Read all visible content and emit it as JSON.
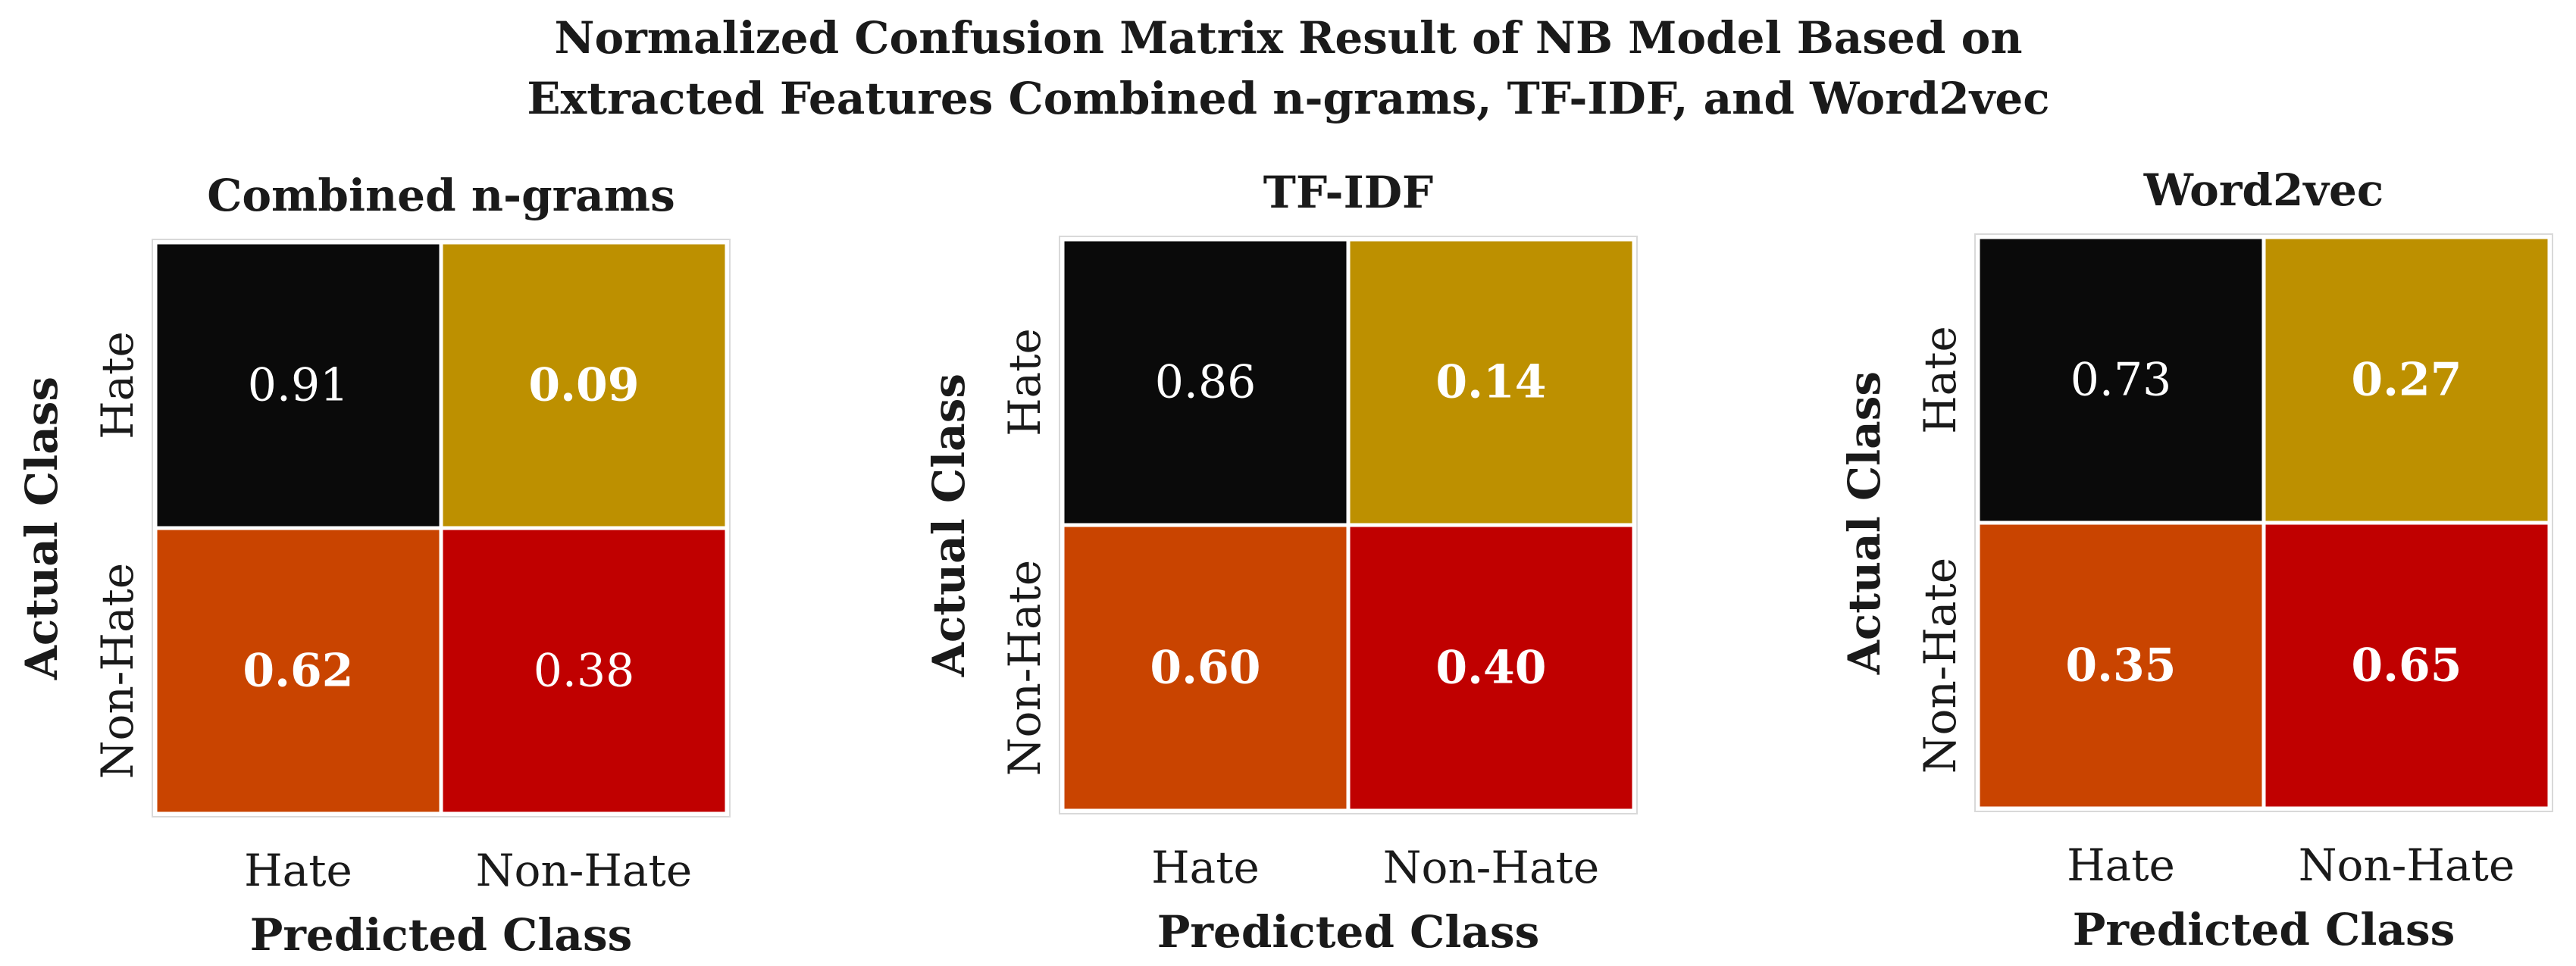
{
  "title_lines": [
    "Normalized Confusion Matrix Result of NB Model Based on",
    "Extracted Features Combined n-grams, TF-IDF, and Word2vec"
  ],
  "chart_data": [
    {
      "type": "heatmap",
      "title": "Combined n-grams",
      "xlabel": "Predicted Class",
      "ylabel": "Actual Class",
      "x_ticks": [
        "Hate",
        "Non-Hate"
      ],
      "y_ticks": [
        "Hate",
        "Non-Hate"
      ],
      "values": [
        [
          0.91,
          0.09
        ],
        [
          0.62,
          0.38
        ]
      ],
      "value_labels": [
        [
          "0.91",
          "0.09"
        ],
        [
          "0.62",
          "0.38"
        ]
      ]
    },
    {
      "type": "heatmap",
      "title": "TF-IDF",
      "xlabel": "Predicted Class",
      "ylabel": "Actual Class",
      "x_ticks": [
        "Hate",
        "Non-Hate"
      ],
      "y_ticks": [
        "Hate",
        "Non-Hate"
      ],
      "values": [
        [
          0.86,
          0.14
        ],
        [
          0.6,
          0.4
        ]
      ],
      "value_labels": [
        [
          "0.86",
          "0.14"
        ],
        [
          "0.60",
          "0.40"
        ]
      ]
    },
    {
      "type": "heatmap",
      "title": "Word2vec",
      "xlabel": "Predicted Class",
      "ylabel": "Actual Class",
      "x_ticks": [
        "Hate",
        "Non-Hate"
      ],
      "y_ticks": [
        "Hate",
        "Non-Hate"
      ],
      "values": [
        [
          0.73,
          0.27
        ],
        [
          0.35,
          0.65
        ]
      ],
      "value_labels": [
        [
          "0.73",
          "0.27"
        ],
        [
          "0.35",
          "0.65"
        ]
      ]
    }
  ],
  "colors": {
    "true_hate": "#0a0a0a",
    "false_non_hate": "#bd9000",
    "false_hate": "#c94400",
    "true_non_hate": "#c00000",
    "cell_border": "#ffffff",
    "value_text": "#ffffff",
    "panel_border": "#d9d9d9"
  }
}
